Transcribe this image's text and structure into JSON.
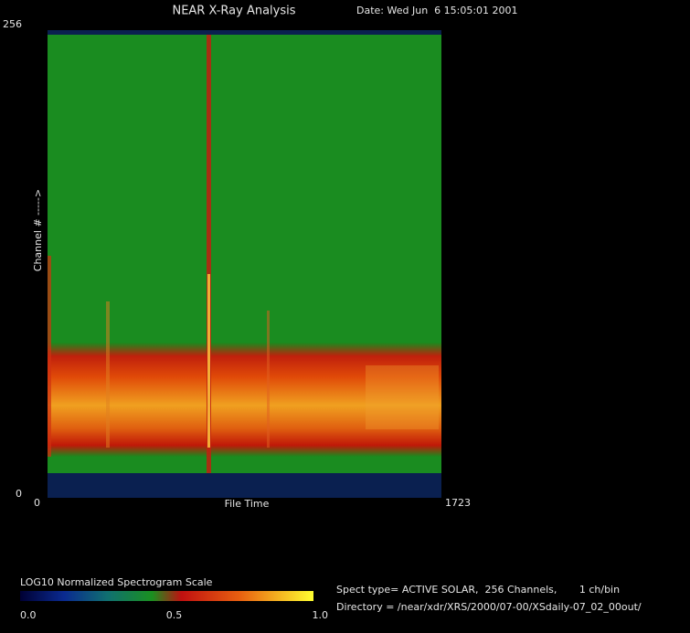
{
  "chart_data": {
    "type": "spectrogram",
    "title": "NEAR X-Ray Analysis",
    "date": "Date: Wed Jun  6 15:05:01 2001",
    "xlabel": "File Time",
    "ylabel": "Channel # ----->",
    "xlim": [
      0,
      1723
    ],
    "xticks": [
      0,
      1723
    ],
    "ylim": [
      0,
      256
    ],
    "yticks": [
      0,
      256
    ],
    "colorbar_title": "LOG10 Normalized Spectrogram Scale",
    "clim": [
      0,
      1
    ],
    "colorbar_ticks": [
      {
        "value": 0,
        "label": "0.0"
      },
      {
        "value": 0.5,
        "label": "0.5"
      },
      {
        "value": 1,
        "label": "1.0"
      }
    ],
    "info": [
      "Spect type= ACTIVE SOLAR,  256 Channels,       1 ch/bin",
      "Directory = /near/xdr/XRS/2000/07-00/XSdaily-07_02_00out/"
    ]
  }
}
